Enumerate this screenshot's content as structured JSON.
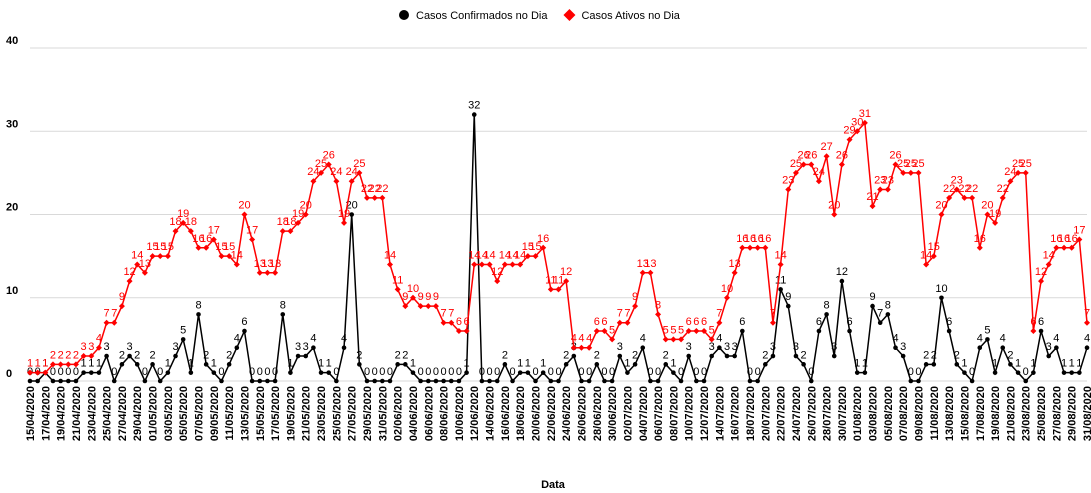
{
  "chart_data": {
    "type": "line",
    "x_label": "Data",
    "categories": [
      "15/04/2020",
      null,
      "17/04/2020",
      null,
      "19/04/2020",
      null,
      "21/04/2020",
      null,
      "23/04/2020",
      null,
      "25/04/2020",
      null,
      "27/04/2020",
      null,
      "29/04/2020",
      null,
      "01/05/2020",
      null,
      "03/05/2020",
      null,
      "05/05/2020",
      null,
      "07/05/2020",
      null,
      "09/05/2020",
      null,
      "11/05/2020",
      null,
      "13/05/2020",
      null,
      "15/05/2020",
      null,
      "17/05/2020",
      null,
      "19/05/2020",
      null,
      "21/05/2020",
      null,
      "23/05/2020",
      null,
      "25/05/2020",
      null,
      "27/05/2020",
      null,
      "29/05/2020",
      null,
      "31/05/2020",
      null,
      "02/06/2020",
      null,
      "04/06/2020",
      null,
      "06/06/2020",
      null,
      "08/06/2020",
      null,
      "10/06/2020",
      null,
      "12/06/2020",
      null,
      "14/06/2020",
      null,
      "16/06/2020",
      null,
      "18/06/2020",
      null,
      "20/06/2020",
      null,
      "22/06/2020",
      null,
      "24/06/2020",
      null,
      "26/06/2020",
      null,
      "28/06/2020",
      null,
      "30/06/2020",
      null,
      "02/07/2020",
      null,
      "04/07/2020",
      null,
      "06/07/2020",
      null,
      "08/07/2020",
      null,
      "10/07/2020",
      null,
      "12/07/2020",
      null,
      "14/07/2020",
      null,
      "16/07/2020",
      null,
      "18/07/2020",
      null,
      "20/07/2020",
      null,
      "22/07/2020",
      null,
      "24/07/2020",
      null,
      "26/07/2020",
      null,
      "28/07/2020",
      null,
      "30/07/2020",
      null,
      "01/08/2020",
      null,
      "03/08/2020",
      null,
      "05/08/2020",
      null,
      "07/08/2020",
      null,
      "09/08/2020",
      null,
      "11/08/2020",
      null,
      "13/08/2020",
      null,
      "15/08/2020",
      null,
      "17/08/2020",
      null,
      "19/08/2020",
      null,
      "21/08/2020",
      null,
      "23/08/2020",
      null,
      "25/08/2020",
      null,
      "27/08/2020",
      null,
      "29/08/2020",
      null,
      "31/08/2020"
    ],
    "series": [
      {
        "name": "Casos Confirmados no Dia",
        "color": "#000000",
        "marker": "circle",
        "values": [
          0,
          0,
          1,
          0,
          0,
          0,
          0,
          1,
          1,
          1,
          3,
          0,
          2,
          3,
          2,
          0,
          2,
          0,
          1,
          3,
          5,
          1,
          8,
          2,
          1,
          0,
          2,
          4,
          6,
          0,
          0,
          0,
          0,
          8,
          1,
          3,
          3,
          4,
          1,
          1,
          0,
          4,
          20,
          2,
          0,
          0,
          0,
          0,
          2,
          2,
          1,
          0,
          0,
          0,
          0,
          0,
          0,
          1,
          32,
          0,
          0,
          0,
          2,
          0,
          1,
          1,
          0,
          1,
          0,
          0,
          2,
          3,
          0,
          0,
          2,
          0,
          0,
          3,
          1,
          2,
          4,
          0,
          0,
          2,
          1,
          0,
          3,
          0,
          0,
          3,
          4,
          3,
          3,
          6,
          0,
          0,
          2,
          3,
          11,
          9,
          3,
          2,
          0,
          6,
          8,
          3,
          12,
          6,
          1,
          1,
          9,
          7,
          8,
          4,
          3,
          0,
          0,
          2,
          2,
          10,
          6,
          2,
          1,
          0,
          4,
          5,
          1,
          4,
          2,
          1,
          0,
          1,
          6,
          3,
          4,
          1,
          1,
          1,
          4
        ]
      },
      {
        "name": "Casos Ativos no Dia",
        "color": "#ff0000",
        "marker": "diamond",
        "values": [
          1,
          1,
          1,
          2,
          2,
          2,
          2,
          3,
          3,
          4,
          7,
          7,
          9,
          12,
          14,
          13,
          15,
          15,
          15,
          18,
          19,
          18,
          16,
          16,
          17,
          15,
          15,
          14,
          20,
          17,
          13,
          13,
          13,
          18,
          18,
          19,
          20,
          24,
          25,
          26,
          24,
          19,
          24,
          25,
          22,
          22,
          22,
          14,
          11,
          9,
          10,
          9,
          9,
          9,
          7,
          7,
          6,
          6,
          14,
          14,
          14,
          12,
          14,
          14,
          14,
          15,
          15,
          16,
          11,
          11,
          12,
          4,
          4,
          4,
          6,
          6,
          5,
          7,
          7,
          9,
          13,
          13,
          8,
          5,
          5,
          5,
          6,
          6,
          6,
          5,
          7,
          10,
          13,
          16,
          16,
          16,
          16,
          7,
          14,
          23,
          25,
          26,
          26,
          24,
          27,
          20,
          26,
          29,
          30,
          31,
          21,
          23,
          23,
          26,
          25,
          25,
          25,
          14,
          15,
          20,
          22,
          23,
          22,
          22,
          16,
          20,
          19,
          22,
          24,
          25,
          25,
          6,
          12,
          14,
          16,
          16,
          16,
          17,
          7
        ]
      }
    ],
    "ylim": [
      0,
      40
    ],
    "yticks": [
      0,
      10,
      20,
      30,
      40
    ],
    "grid": true
  }
}
